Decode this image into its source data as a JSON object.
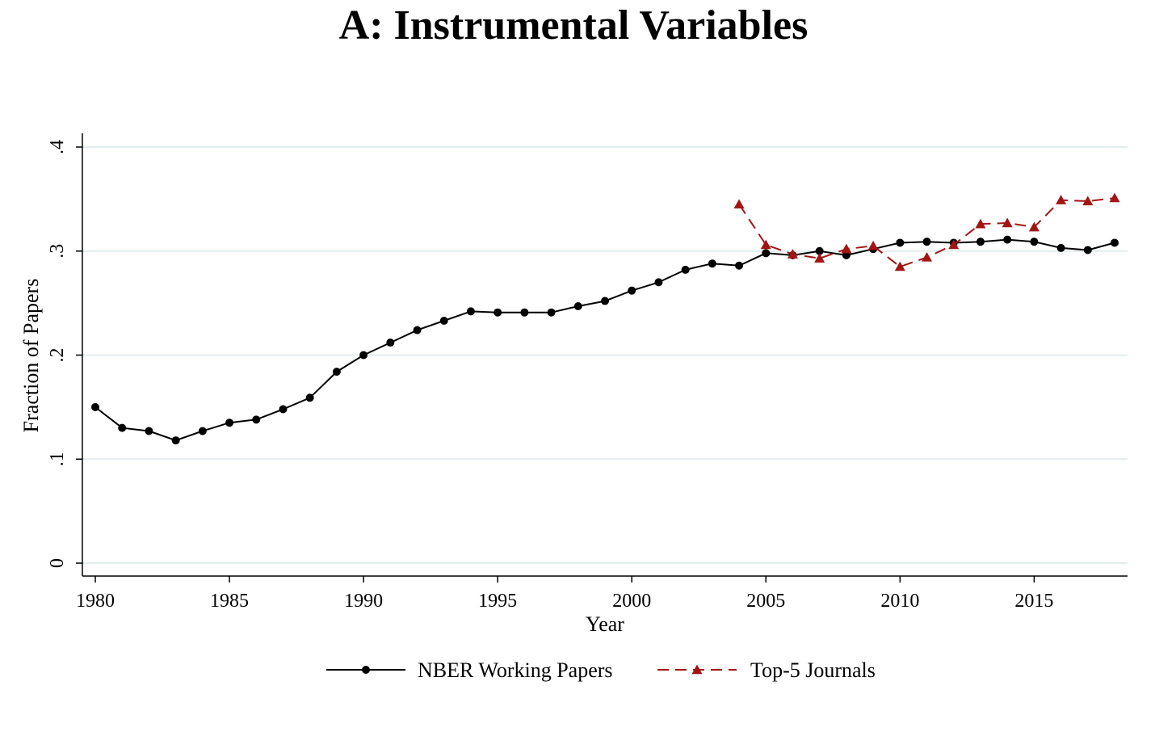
{
  "chart_data": {
    "type": "line",
    "title": "A: Instrumental Variables",
    "xlabel": "Year",
    "ylabel": "Fraction of Papers",
    "xlim": [
      1980,
      2018
    ],
    "ylim": [
      0,
      0.4
    ],
    "xticks": [
      1980,
      1985,
      1990,
      1995,
      2000,
      2005,
      2010,
      2015
    ],
    "yticks": [
      {
        "value": 0,
        "label": "0"
      },
      {
        "value": 0.1,
        "label": ".1"
      },
      {
        "value": 0.2,
        "label": ".2"
      },
      {
        "value": 0.3,
        "label": ".3"
      },
      {
        "value": 0.4,
        "label": ".4"
      }
    ],
    "grid": true,
    "legend_position": "bottom",
    "series": [
      {
        "name": "NBER Working Papers",
        "color": "#000000",
        "marker": "circle",
        "line_style": "solid",
        "x": [
          1980,
          1981,
          1982,
          1983,
          1984,
          1985,
          1986,
          1987,
          1988,
          1989,
          1990,
          1991,
          1992,
          1993,
          1994,
          1995,
          1996,
          1997,
          1998,
          1999,
          2000,
          2001,
          2002,
          2003,
          2004,
          2005,
          2006,
          2007,
          2008,
          2009,
          2010,
          2011,
          2012,
          2013,
          2014,
          2015,
          2016,
          2017,
          2018
        ],
        "values": [
          0.15,
          0.13,
          0.127,
          0.118,
          0.127,
          0.135,
          0.138,
          0.148,
          0.159,
          0.184,
          0.2,
          0.212,
          0.224,
          0.233,
          0.242,
          0.241,
          0.241,
          0.241,
          0.247,
          0.252,
          0.262,
          0.27,
          0.282,
          0.288,
          0.286,
          0.298,
          0.296,
          0.3,
          0.296,
          0.302,
          0.308,
          0.309,
          0.308,
          0.309,
          0.311,
          0.309,
          0.303,
          0.301,
          0.308
        ]
      },
      {
        "name": "Top-5 Journals",
        "color": "#a31515",
        "marker": "triangle",
        "line_style": "dashed",
        "x": [
          2004,
          2005,
          2006,
          2007,
          2008,
          2009,
          2010,
          2011,
          2012,
          2013,
          2014,
          2015,
          2016,
          2017,
          2018
        ],
        "values": [
          0.345,
          0.306,
          0.297,
          0.293,
          0.302,
          0.305,
          0.285,
          0.294,
          0.306,
          0.326,
          0.327,
          0.323,
          0.349,
          0.348,
          0.351
        ]
      }
    ]
  }
}
